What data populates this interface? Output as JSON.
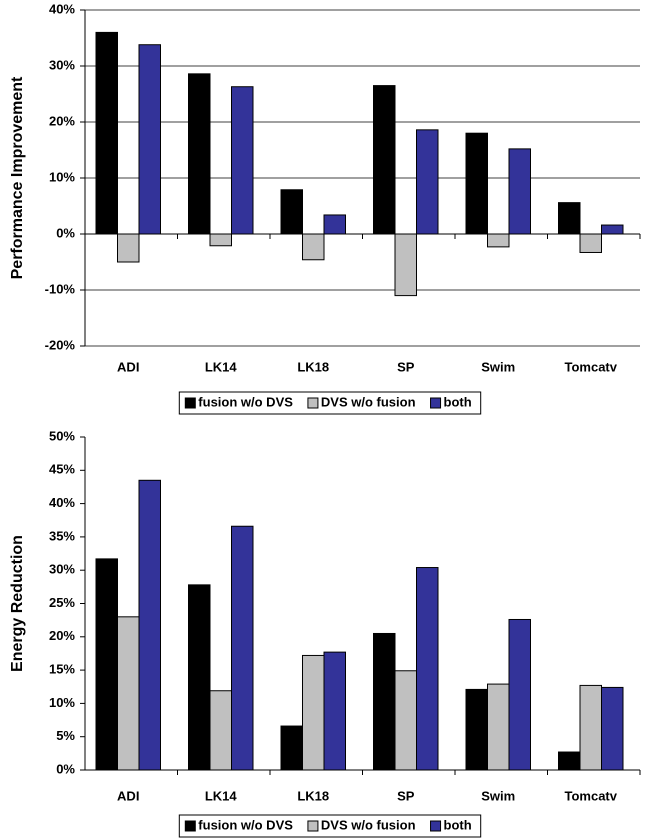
{
  "chart_data": [
    {
      "type": "bar",
      "y_label": "Performance Improvement",
      "categories": [
        "ADI",
        "LK14",
        "LK18",
        "SP",
        "Swim",
        "Tomcatv"
      ],
      "series": [
        {
          "name": "fusion w/o DVS",
          "color": "#000000",
          "values": [
            36,
            28.6,
            7.9,
            26.5,
            18,
            5.6
          ]
        },
        {
          "name": "DVS w/o fusion",
          "color": "#c0c0c0",
          "values": [
            -5,
            -2.1,
            -4.6,
            -11,
            -2.3,
            -3.3
          ]
        },
        {
          "name": "both",
          "color": "#333399",
          "values": [
            33.8,
            26.3,
            3.4,
            18.6,
            15.2,
            1.6
          ]
        }
      ],
      "ylim": [
        -20,
        40
      ],
      "yticks": [
        {
          "value": -20,
          "label": "-20%"
        },
        {
          "value": -10,
          "label": "-10%"
        },
        {
          "value": 0,
          "label": "0%"
        },
        {
          "value": 10,
          "label": "10%"
        },
        {
          "value": 20,
          "label": "20%"
        },
        {
          "value": 30,
          "label": "30%"
        },
        {
          "value": 40,
          "label": "40%"
        }
      ],
      "grid": true,
      "legend": "bottom"
    },
    {
      "type": "bar",
      "y_label": "Energy Reduction",
      "categories": [
        "ADI",
        "LK14",
        "LK18",
        "SP",
        "Swim",
        "Tomcatv"
      ],
      "series": [
        {
          "name": "fusion w/o DVS",
          "color": "#000000",
          "values": [
            31.7,
            27.8,
            6.6,
            20.5,
            12.1,
            2.7
          ]
        },
        {
          "name": "DVS w/o fusion",
          "color": "#c0c0c0",
          "values": [
            23,
            11.9,
            17.2,
            14.9,
            12.9,
            12.7
          ]
        },
        {
          "name": "both",
          "color": "#333399",
          "values": [
            43.5,
            36.6,
            17.7,
            30.4,
            22.6,
            12.4
          ]
        }
      ],
      "ylim": [
        0,
        50
      ],
      "yticks": [
        {
          "value": 0,
          "label": "0%"
        },
        {
          "value": 5,
          "label": "5%"
        },
        {
          "value": 10,
          "label": "10%"
        },
        {
          "value": 15,
          "label": "15%"
        },
        {
          "value": 20,
          "label": "20%"
        },
        {
          "value": 25,
          "label": "25%"
        },
        {
          "value": 30,
          "label": "30%"
        },
        {
          "value": 35,
          "label": "35%"
        },
        {
          "value": 40,
          "label": "40%"
        },
        {
          "value": 45,
          "label": "45%"
        },
        {
          "value": 50,
          "label": "50%"
        }
      ],
      "grid": false,
      "legend": "bottom"
    }
  ]
}
